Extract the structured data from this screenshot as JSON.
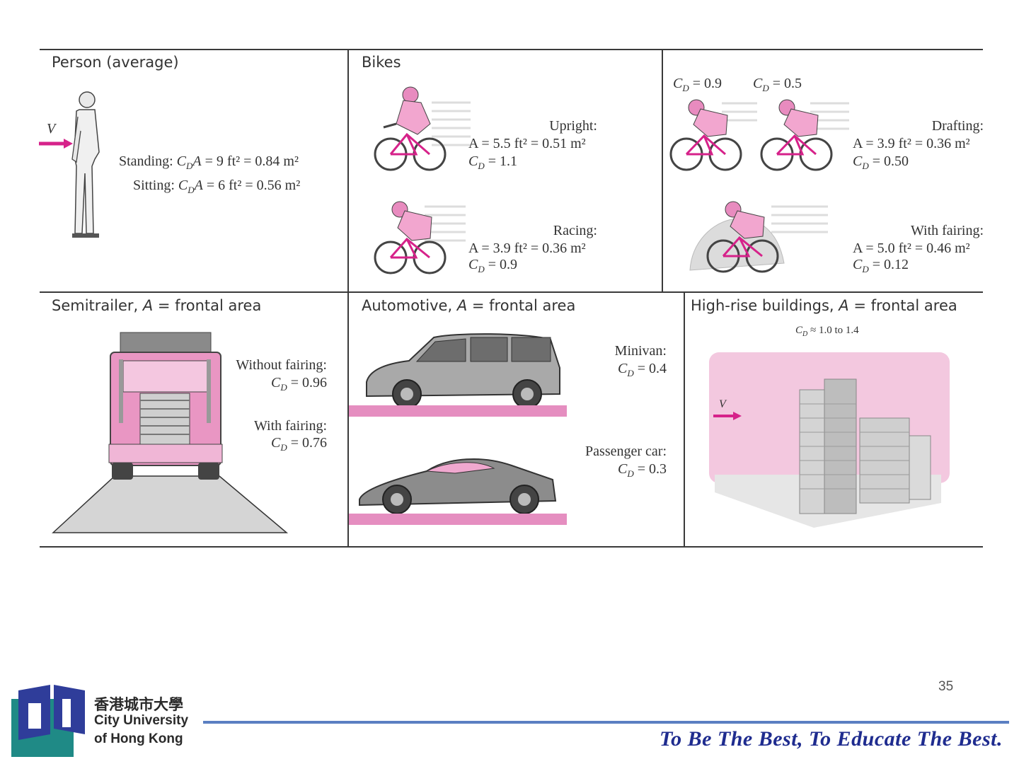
{
  "cells": {
    "person": {
      "title": "Person (average)",
      "v_label": "V",
      "standing_label": "Standing:",
      "standing_value": "= 9 ft² = 0.84 m²",
      "sitting_label": "Sitting:",
      "sitting_value": "= 6 ft² = 0.56 m²"
    },
    "bikes": {
      "title": "Bikes",
      "upright_label": "Upright:",
      "upright_area": "A = 5.5 ft² = 0.51 m²",
      "upright_cd": "= 1.1",
      "racing_label": "Racing:",
      "racing_area": "A = 3.9 ft² = 0.36 m²",
      "racing_cd": "= 0.9"
    },
    "drafting": {
      "cd_first": "= 0.9",
      "cd_second": "= 0.5",
      "drafting_label": "Drafting:",
      "drafting_area": "A = 3.9 ft² = 0.36 m²",
      "drafting_cd": "= 0.50",
      "fairing_label": "With fairing:",
      "fairing_area": "A = 5.0 ft² = 0.46 m²",
      "fairing_cd": "= 0.12"
    },
    "semitrailer": {
      "title_prefix": "Semitrailer, ",
      "title_suffix": " = frontal area",
      "without_label": "Without fairing:",
      "without_cd": "= 0.96",
      "with_label": "With fairing:",
      "with_cd": "= 0.76"
    },
    "automotive": {
      "title_prefix": "Automotive, ",
      "title_suffix": " = frontal area",
      "minivan_label": "Minivan:",
      "minivan_cd": "= 0.4",
      "car_label": "Passenger car:",
      "car_cd": "= 0.3"
    },
    "buildings": {
      "title_prefix": "High-rise buildings, ",
      "title_suffix": " = frontal area",
      "cd_range": "≈ 1.0 to 1.4",
      "v_label": "V"
    }
  },
  "symbols": {
    "A": "A",
    "C": "C",
    "D": "D"
  },
  "footer": {
    "slide_number": "35",
    "motto": "To Be The Best, To Educate The Best.",
    "logo_chinese": "香港城市大學",
    "logo_line1": "City University",
    "logo_line2": "of Hong Kong"
  },
  "colors": {
    "accent_pink": "#d6228a",
    "footer_line": "#5b7fc2",
    "motto": "#1f2c8f"
  }
}
